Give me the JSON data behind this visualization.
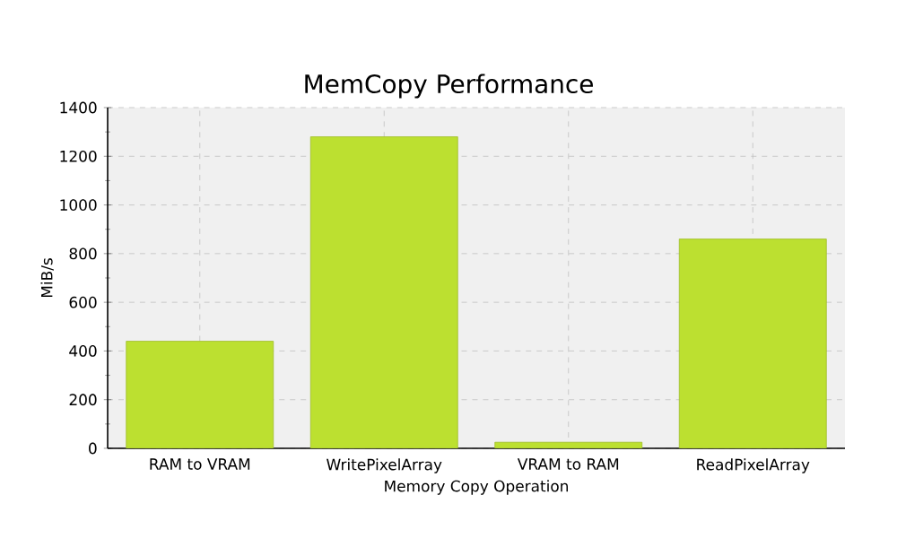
{
  "chart_data": {
    "type": "bar",
    "title": "MemCopy Performance",
    "xlabel": "Memory Copy Operation",
    "ylabel": "MiB/s",
    "categories": [
      "RAM to VRAM",
      "WritePixelArray",
      "VRAM to RAM",
      "ReadPixelArray"
    ],
    "values": [
      440,
      1280,
      25,
      860
    ],
    "color": "#bce030",
    "ylim": [
      0,
      1400
    ],
    "yticks": [
      0,
      200,
      400,
      600,
      800,
      1000,
      1200,
      1400
    ],
    "grid": true
  }
}
